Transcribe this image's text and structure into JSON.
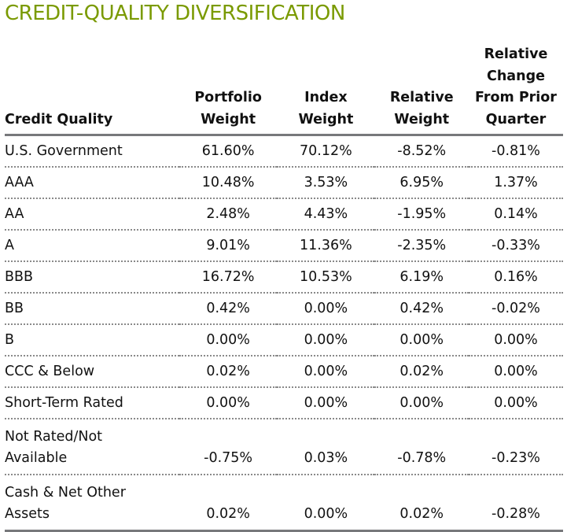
{
  "title": "CREDIT-QUALITY DIVERSIFICATION",
  "colors": {
    "title": "#7a9a01",
    "rule": "#77787b"
  },
  "columns": [
    "Credit Quality",
    "Portfolio Weight",
    "Index Weight",
    "Relative Weight",
    "Relative Change From Prior Quarter"
  ],
  "rows": [
    [
      "U.S. Government",
      "61.60%",
      "70.12%",
      "-8.52%",
      "-0.81%"
    ],
    [
      "AAA",
      "10.48%",
      "3.53%",
      "6.95%",
      "1.37%"
    ],
    [
      "AA",
      "2.48%",
      "4.43%",
      "-1.95%",
      "0.14%"
    ],
    [
      "A",
      "9.01%",
      "11.36%",
      "-2.35%",
      "-0.33%"
    ],
    [
      "BBB",
      "16.72%",
      "10.53%",
      "6.19%",
      "0.16%"
    ],
    [
      "BB",
      "0.42%",
      "0.00%",
      "0.42%",
      "-0.02%"
    ],
    [
      "B",
      "0.00%",
      "0.00%",
      "0.00%",
      "0.00%"
    ],
    [
      "CCC & Below",
      "0.02%",
      "0.00%",
      "0.02%",
      "0.00%"
    ],
    [
      "Short-Term Rated",
      "0.00%",
      "0.00%",
      "0.00%",
      "0.00%"
    ],
    [
      "Not Rated/Not Available",
      "-0.75%",
      "0.03%",
      "-0.78%",
      "-0.23%"
    ],
    [
      "Cash & Net Other Assets",
      "0.02%",
      "0.00%",
      "0.02%",
      "-0.28%"
    ]
  ]
}
